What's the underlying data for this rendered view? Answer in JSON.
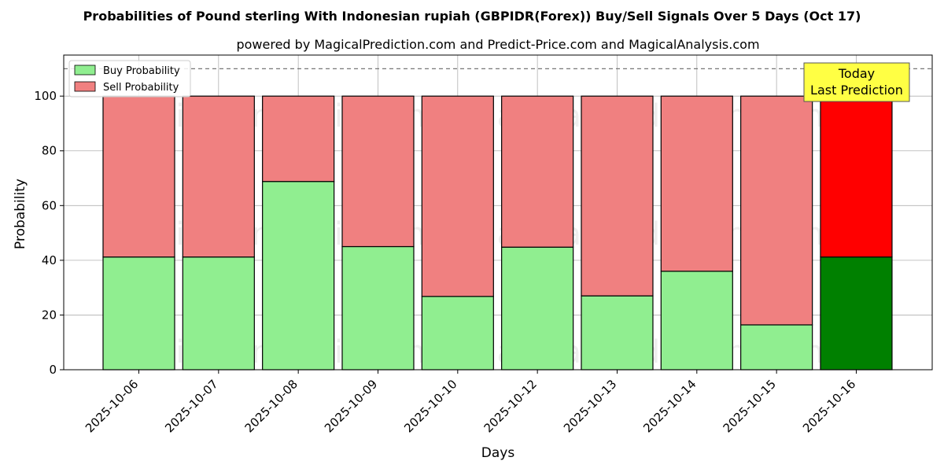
{
  "chart_data": {
    "type": "bar",
    "stacked": true,
    "title": "Probabilities of Pound sterling With Indonesian rupiah (GBPIDR(Forex)) Buy/Sell Signals Over 5 Days (Oct 17)",
    "subtitle": "powered by MagicalPrediction.com and Predict-Price.com and MagicalAnalysis.com",
    "xlabel": "Days",
    "ylabel": "Probability",
    "ylim": [
      0,
      115
    ],
    "yticks": [
      0,
      20,
      40,
      60,
      80,
      100
    ],
    "grid": true,
    "legend_position": "top-left",
    "reference_line": 110,
    "categories": [
      "2025-10-06",
      "2025-10-07",
      "2025-10-08",
      "2025-10-09",
      "2025-10-10",
      "2025-10-12",
      "2025-10-13",
      "2025-10-14",
      "2025-10-15",
      "2025-10-16"
    ],
    "series": [
      {
        "name": "Buy Probability",
        "color": "#90ee90",
        "highlight_color": "#008000",
        "values": [
          41.2,
          41.2,
          68.8,
          45.0,
          26.8,
          44.8,
          27.0,
          36.0,
          16.4,
          41.2
        ]
      },
      {
        "name": "Sell Probability",
        "color": "#f08080",
        "highlight_color": "#ff0000",
        "values": [
          58.8,
          58.8,
          31.2,
          55.0,
          73.2,
          55.2,
          73.0,
          64.0,
          83.6,
          58.8
        ]
      }
    ],
    "highlight_index": 9,
    "annotation": {
      "line1": "Today",
      "line2": "Last Prediction",
      "color": "#ffff44"
    },
    "watermarks": [
      "MagicalAnalysis.com",
      "MagicalPrediction.com"
    ]
  }
}
